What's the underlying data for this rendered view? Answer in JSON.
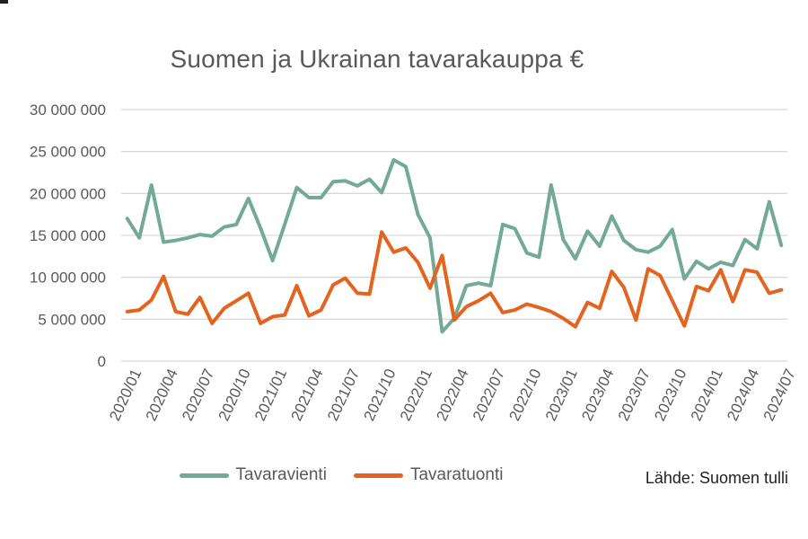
{
  "title": "Suomen ja Ukrainan tavarakauppa €",
  "source_note": "Lähde: Suomen tulli",
  "colors": {
    "export_line": "#73aa96",
    "import_line": "#e4641f",
    "gridline": "#d9d9d9",
    "axis_text": "#595959",
    "title_text": "#595959",
    "source_text": "#1f1f1f",
    "background": "#ffffff"
  },
  "chart_data": {
    "type": "line",
    "title": "Suomen ja Ukrainan tavarakauppa €",
    "xlabel": "",
    "ylabel": "",
    "ylim": [
      0,
      30000000
    ],
    "ytick_step": 5000000,
    "ytick_labels": [
      "0",
      "5 000 000",
      "10 000 000",
      "15 000 000",
      "20 000 000",
      "25 000 000",
      "30 000 000"
    ],
    "xtick_every": 3,
    "grid": "horizontal",
    "legend_position": "bottom",
    "categories": [
      "2020/01",
      "2020/02",
      "2020/03",
      "2020/04",
      "2020/05",
      "2020/06",
      "2020/07",
      "2020/08",
      "2020/09",
      "2020/10",
      "2020/11",
      "2020/12",
      "2021/01",
      "2021/02",
      "2021/03",
      "2021/04",
      "2021/05",
      "2021/06",
      "2021/07",
      "2021/08",
      "2021/09",
      "2021/10",
      "2021/11",
      "2021/12",
      "2022/01",
      "2022/02",
      "2022/03",
      "2022/04",
      "2022/05",
      "2022/06",
      "2022/07",
      "2022/08",
      "2022/09",
      "2022/10",
      "2022/11",
      "2022/12",
      "2023/01",
      "2023/02",
      "2023/03",
      "2023/04",
      "2023/05",
      "2023/06",
      "2023/07",
      "2023/08",
      "2023/09",
      "2023/10",
      "2023/11",
      "2023/12",
      "2024/01",
      "2024/02",
      "2024/03",
      "2024/04",
      "2024/05",
      "2024/06",
      "2024/07"
    ],
    "series": [
      {
        "name": "Tavaravienti",
        "color": "#73aa96",
        "values": [
          17000000,
          14700000,
          21000000,
          14200000,
          14400000,
          14700000,
          15100000,
          14900000,
          16000000,
          16300000,
          19400000,
          15900000,
          12000000,
          16300000,
          20700000,
          19500000,
          19500000,
          21400000,
          21500000,
          20900000,
          21700000,
          20100000,
          24000000,
          23200000,
          17500000,
          14700000,
          3500000,
          5100000,
          9000000,
          9300000,
          9000000,
          16300000,
          15800000,
          12900000,
          12400000,
          21000000,
          14500000,
          12200000,
          15500000,
          13700000,
          17300000,
          14400000,
          13300000,
          13000000,
          13700000,
          15700000,
          9800000,
          11900000,
          11000000,
          11800000,
          11400000,
          14500000,
          13400000,
          19000000,
          13800000
        ]
      },
      {
        "name": "Tavaratuonti",
        "color": "#e4641f",
        "values": [
          5900000,
          6100000,
          7300000,
          10100000,
          5900000,
          5600000,
          7600000,
          4500000,
          6300000,
          7200000,
          8100000,
          4500000,
          5300000,
          5500000,
          9000000,
          5400000,
          6100000,
          9100000,
          9900000,
          8100000,
          8000000,
          15400000,
          13000000,
          13500000,
          11800000,
          8700000,
          12600000,
          4900000,
          6500000,
          7200000,
          8100000,
          5800000,
          6100000,
          6800000,
          6400000,
          5900000,
          5100000,
          4100000,
          7000000,
          6300000,
          10700000,
          8800000,
          4900000,
          11000000,
          10200000,
          7200000,
          4200000,
          8900000,
          8400000,
          10900000,
          7100000,
          10900000,
          10600000,
          8100000,
          8500000
        ]
      }
    ]
  },
  "legend": {
    "items": [
      {
        "label": "Tavaravienti"
      },
      {
        "label": "Tavaratuonti"
      }
    ]
  }
}
